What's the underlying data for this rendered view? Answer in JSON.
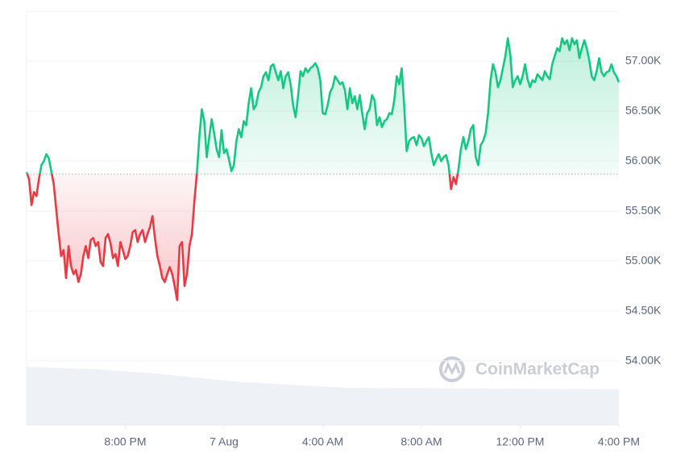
{
  "chart_data": {
    "type": "line",
    "watermark": "CoinMarketCap",
    "baseline": 55870,
    "colors": {
      "up": "#16c784",
      "down": "#ea3943"
    },
    "xlim": [
      0,
      24
    ],
    "xticks": [
      {
        "value": 4,
        "label": "8:00 PM"
      },
      {
        "value": 8,
        "label": "7 Aug"
      },
      {
        "value": 12,
        "label": "4:00 AM"
      },
      {
        "value": 16,
        "label": "8:00 AM"
      },
      {
        "value": 20,
        "label": "12:00 PM"
      },
      {
        "value": 24,
        "label": "4:00 PM"
      }
    ],
    "ylim": [
      53360,
      57500
    ],
    "yticks": [
      {
        "value": 54000,
        "label": "54.00K"
      },
      {
        "value": 54500,
        "label": "54.50K"
      },
      {
        "value": 55000,
        "label": "55.00K"
      },
      {
        "value": 55500,
        "label": "55.50K"
      },
      {
        "value": 56000,
        "label": "56.00K"
      },
      {
        "value": 56500,
        "label": "56.50K"
      },
      {
        "value": 57000,
        "label": "57.00K"
      }
    ],
    "grid": true,
    "x": [
      0,
      0.1,
      0.2,
      0.3,
      0.4,
      0.5,
      0.6,
      0.7,
      0.8,
      0.9,
      1,
      1.1,
      1.2,
      1.3,
      1.4,
      1.5,
      1.6,
      1.7,
      1.8,
      1.9,
      2,
      2.1,
      2.2,
      2.3,
      2.4,
      2.5,
      2.6,
      2.7,
      2.8,
      2.9,
      3,
      3.1,
      3.2,
      3.3,
      3.4,
      3.5,
      3.6,
      3.7,
      3.8,
      3.9,
      4,
      4.1,
      4.2,
      4.3,
      4.4,
      4.5,
      4.6,
      4.7,
      4.8,
      4.9,
      5,
      5.1,
      5.2,
      5.3,
      5.4,
      5.5,
      5.6,
      5.7,
      5.8,
      5.9,
      6,
      6.1,
      6.2,
      6.3,
      6.4,
      6.5,
      6.6,
      6.7,
      6.8,
      6.9,
      7,
      7.1,
      7.2,
      7.3,
      7.4,
      7.5,
      7.6,
      7.7,
      7.8,
      7.9,
      8,
      8.1,
      8.2,
      8.3,
      8.4,
      8.5,
      8.6,
      8.7,
      8.8,
      8.9,
      9,
      9.1,
      9.2,
      9.3,
      9.4,
      9.5,
      9.6,
      9.7,
      9.8,
      9.9,
      10,
      10.1,
      10.2,
      10.3,
      10.4,
      10.5,
      10.6,
      10.7,
      10.8,
      10.9,
      11,
      11.1,
      11.2,
      11.3,
      11.4,
      11.5,
      11.6,
      11.7,
      11.8,
      11.9,
      12,
      12.1,
      12.2,
      12.3,
      12.4,
      12.5,
      12.6,
      12.7,
      12.8,
      12.9,
      13,
      13.1,
      13.2,
      13.3,
      13.4,
      13.5,
      13.6,
      13.7,
      13.8,
      13.9,
      14,
      14.1,
      14.2,
      14.3,
      14.4,
      14.5,
      14.6,
      14.7,
      14.8,
      14.9,
      15,
      15.1,
      15.2,
      15.3,
      15.4,
      15.5,
      15.6,
      15.7,
      15.8,
      15.9,
      16,
      16.1,
      16.2,
      16.3,
      16.4,
      16.5,
      16.6,
      16.7,
      16.8,
      16.9,
      17,
      17.1,
      17.2,
      17.3,
      17.4,
      17.5,
      17.6,
      17.7,
      17.8,
      17.9,
      18,
      18.1,
      18.2,
      18.3,
      18.4,
      18.5,
      18.6,
      18.7,
      18.8,
      18.9,
      19,
      19.1,
      19.2,
      19.3,
      19.4,
      19.5,
      19.6,
      19.7,
      19.8,
      19.9,
      20,
      20.1,
      20.2,
      20.3,
      20.4,
      20.5,
      20.6,
      20.7,
      20.8,
      20.9,
      21,
      21.1,
      21.2,
      21.3,
      21.4,
      21.5,
      21.6,
      21.7,
      21.8,
      21.9,
      22,
      22.1,
      22.2,
      22.3,
      22.4,
      22.5,
      22.6,
      22.7,
      22.8,
      22.9,
      23,
      23.1,
      23.2,
      23.3,
      23.4,
      23.5,
      23.6,
      23.7,
      23.8,
      23.9,
      24
    ],
    "values": [
      55890,
      55820,
      55560,
      55690,
      55650,
      55820,
      55960,
      56000,
      56070,
      56030,
      55900,
      55770,
      55520,
      55270,
      55050,
      55110,
      54830,
      55150,
      54950,
      54870,
      54910,
      54790,
      54870,
      55050,
      55150,
      55030,
      55210,
      55230,
      55150,
      55190,
      54990,
      54950,
      55230,
      55270,
      55180,
      55030,
      55070,
      54950,
      55190,
      55110,
      55020,
      55050,
      55150,
      55290,
      55310,
      55190,
      55270,
      55310,
      55190,
      55270,
      55340,
      55450,
      55230,
      55050,
      54950,
      54830,
      54790,
      54870,
      54940,
      54870,
      54750,
      54610,
      55150,
      55190,
      54750,
      54870,
      55150,
      55270,
      55600,
      55880,
      56240,
      56520,
      56400,
      56040,
      56240,
      56420,
      56280,
      56120,
      56040,
      56310,
      56080,
      56120,
      56020,
      55900,
      55960,
      56200,
      56320,
      56240,
      56400,
      56360,
      56580,
      56730,
      56520,
      56560,
      56690,
      56740,
      56850,
      56890,
      56810,
      56950,
      56970,
      56890,
      56810,
      56900,
      56730,
      56850,
      56890,
      56770,
      56560,
      56440,
      56650,
      56900,
      56850,
      56930,
      56890,
      56930,
      56950,
      56980,
      56930,
      56810,
      56480,
      56470,
      56560,
      56690,
      56740,
      56850,
      56810,
      56770,
      56790,
      56710,
      56520,
      56730,
      56580,
      56650,
      56520,
      56660,
      56480,
      56320,
      56480,
      56520,
      56660,
      56610,
      56360,
      56440,
      56340,
      56400,
      56420,
      56480,
      56470,
      56610,
      56850,
      56770,
      56930,
      56560,
      56100,
      56200,
      56230,
      56240,
      56160,
      56260,
      56230,
      56150,
      56200,
      56240,
      56080,
      55960,
      56020,
      56070,
      56000,
      56040,
      56060,
      55960,
      55720,
      55840,
      55770,
      55920,
      56120,
      56240,
      56120,
      56200,
      56320,
      56360,
      56040,
      55960,
      56160,
      56200,
      56280,
      56480,
      56810,
      56970,
      56890,
      56740,
      56810,
      56930,
      57050,
      57230,
      57070,
      56740,
      56810,
      56850,
      56770,
      56850,
      56970,
      56820,
      56740,
      56810,
      56790,
      56870,
      56840,
      56810,
      56900,
      56850,
      56820,
      56970,
      57050,
      57130,
      57100,
      57230,
      57170,
      57210,
      57110,
      57230,
      57170,
      57210,
      57030,
      57130,
      57210,
      57130,
      57010,
      56850,
      56810,
      56900,
      57030,
      56890,
      56850,
      56890,
      56900,
      56970,
      56890,
      56850,
      56790
    ]
  }
}
